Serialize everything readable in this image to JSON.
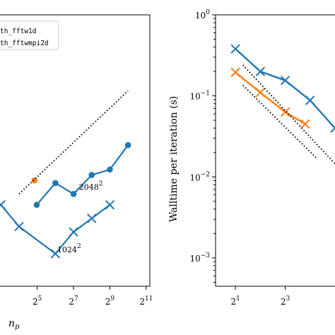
{
  "chart_data": [
    {
      "type": "line",
      "xscale": "log2",
      "xlabel": "n_p",
      "xlabel_base": "n",
      "xlabel_sub": "p",
      "xlim_log2": [
        2.95,
        11.2
      ],
      "ylim_frac": [
        0,
        1
      ],
      "xticks": [
        {
          "base": "2",
          "exp": "5",
          "log2": 5
        },
        {
          "base": "2",
          "exp": "7",
          "log2": 7
        },
        {
          "base": "2",
          "exp": "9",
          "log2": 9
        },
        {
          "base": "2",
          "exp": "11",
          "log2": 11
        }
      ],
      "legend": {
        "placement": "top-left",
        "entries": [
          "th_fftw1d",
          "th_fftwmpi2d"
        ]
      },
      "series": [
        {
          "color": "#1f77b4",
          "marker": "circle",
          "x_log2": [
            4.97,
            6,
            7,
            8,
            9,
            10
          ],
          "y": [
            0.3,
            0.38,
            0.34,
            0.41,
            0.43,
            0.52
          ]
        },
        {
          "color": "#1f77b4",
          "marker": "x",
          "x_log2": [
            3,
            4,
            6,
            7,
            8,
            9
          ],
          "y": [
            0.3,
            0.22,
            0.12,
            0.2,
            0.25,
            0.3
          ]
        },
        {
          "color": "#ff7f0e",
          "marker": "circle",
          "x_log2": [
            4.85
          ],
          "y": [
            0.39
          ]
        },
        {
          "color": "#000000",
          "style": "dotted",
          "x_log2": [
            4.0,
            10.0
          ],
          "y": [
            0.34,
            0.72
          ]
        }
      ],
      "annotations": [
        {
          "base": "2048",
          "exp": "2",
          "x_log2": 7.3,
          "y": 0.355
        },
        {
          "base": "1024",
          "exp": "2",
          "x_log2": 6.1,
          "y": 0.125
        }
      ]
    },
    {
      "type": "line",
      "xscale": "log2",
      "yscale": "log10",
      "ylabel": "Walltime per iteration (s)",
      "xlim_log2": [
        0.2,
        5
      ],
      "ylim_log10": [
        -3.35,
        0
      ],
      "xticks": [
        {
          "base": "2",
          "exp": "1",
          "log2": 1
        },
        {
          "base": "2",
          "exp": "3",
          "log2": 3
        }
      ],
      "yticks": [
        {
          "base": "10",
          "exp": "0",
          "log10": 0
        },
        {
          "base": "10",
          "exp": "−1",
          "log10": -1
        },
        {
          "base": "10",
          "exp": "−2",
          "log10": -2
        },
        {
          "base": "10",
          "exp": "−3",
          "log10": -3
        }
      ],
      "series": [
        {
          "color": "#1f77b4",
          "marker": "x",
          "x_log2": [
            1,
            2,
            3,
            4,
            5
          ],
          "y": [
            0.38,
            0.2,
            0.155,
            0.088,
            0.04
          ]
        },
        {
          "color": "#ff7f0e",
          "marker": "x",
          "x_log2": [
            1,
            2,
            3,
            3.8
          ],
          "y": [
            0.195,
            0.11,
            0.063,
            0.045
          ]
        },
        {
          "color": "#000000",
          "style": "dotted",
          "x_log2": [
            1.3,
            5
          ],
          "y": [
            0.24,
            0.0145
          ]
        },
        {
          "color": "#000000",
          "style": "dotted",
          "x_log2": [
            1.3,
            4.3
          ],
          "y": [
            0.135,
            0.0165
          ]
        }
      ]
    }
  ]
}
